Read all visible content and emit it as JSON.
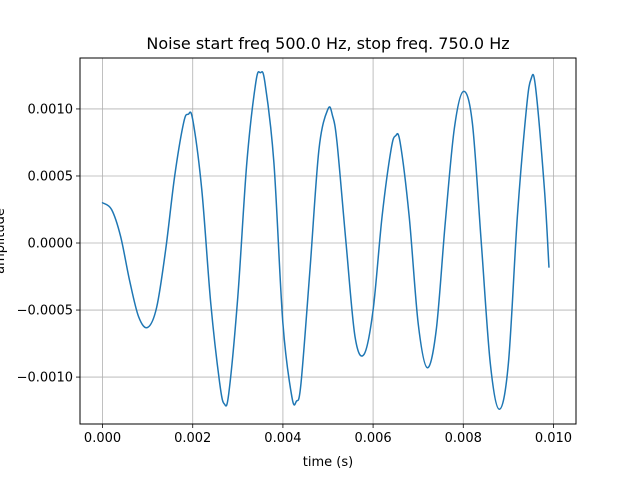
{
  "chart_data": {
    "type": "line",
    "title": "Noise start freq 500.0 Hz, stop freq. 750.0 Hz",
    "xlabel": "time (s)",
    "ylabel": "amplitude",
    "xlim": [
      -0.0005,
      0.0105
    ],
    "ylim": [
      -0.00135,
      0.00138
    ],
    "grid": true,
    "x_ticks": [
      0.0,
      0.002,
      0.004,
      0.006,
      0.008,
      0.01
    ],
    "x_tick_labels": [
      "0.000",
      "0.002",
      "0.004",
      "0.006",
      "0.008",
      "0.010"
    ],
    "y_ticks": [
      -0.001,
      -0.0005,
      0.0,
      0.0005,
      0.001
    ],
    "y_tick_labels": [
      "−0.0010",
      "−0.0005",
      "0.0000",
      "0.0005",
      "0.0010"
    ],
    "series": [
      {
        "color": "#1f77b4",
        "x": [
          0.0,
          0.0002,
          0.0004,
          0.0006,
          0.0008,
          0.001,
          0.0012,
          0.0014,
          0.0016,
          0.0018,
          0.0019,
          0.002,
          0.0022,
          0.0024,
          0.0026,
          0.0027,
          0.0028,
          0.003,
          0.0032,
          0.0034,
          0.0035,
          0.0036,
          0.0038,
          0.004,
          0.0042,
          0.0043,
          0.0044,
          0.0046,
          0.0048,
          0.005,
          0.0051,
          0.0052,
          0.0054,
          0.0056,
          0.0058,
          0.006,
          0.0062,
          0.0064,
          0.0065,
          0.0066,
          0.0068,
          0.007,
          0.0072,
          0.0074,
          0.0076,
          0.0078,
          0.008,
          0.0082,
          0.0084,
          0.0086,
          0.0088,
          0.009,
          0.0092,
          0.0094,
          0.0095,
          0.0096,
          0.0098,
          0.0099
        ],
        "y": [
          0.0003,
          0.00025,
          5e-05,
          -0.00028,
          -0.00055,
          -0.00063,
          -0.00048,
          -5e-05,
          0.0005,
          0.0009,
          0.00096,
          0.00092,
          0.0004,
          -0.00045,
          -0.00105,
          -0.0012,
          -0.00112,
          -0.0004,
          0.0006,
          0.0012,
          0.00127,
          0.0012,
          0.0006,
          -0.0006,
          -0.00115,
          -0.00118,
          -0.00105,
          -0.0002,
          0.0007,
          0.001,
          0.00095,
          0.00075,
          0.0,
          -0.0007,
          -0.00083,
          -0.0005,
          0.0002,
          0.0007,
          0.0008,
          0.00075,
          0.0002,
          -0.0006,
          -0.00093,
          -0.00065,
          0.00015,
          0.00085,
          0.00113,
          0.0009,
          0.0,
          -0.0009,
          -0.00124,
          -0.0009,
          0.0002,
          0.001,
          0.00122,
          0.00117,
          0.0004,
          -0.00018
        ]
      }
    ]
  }
}
